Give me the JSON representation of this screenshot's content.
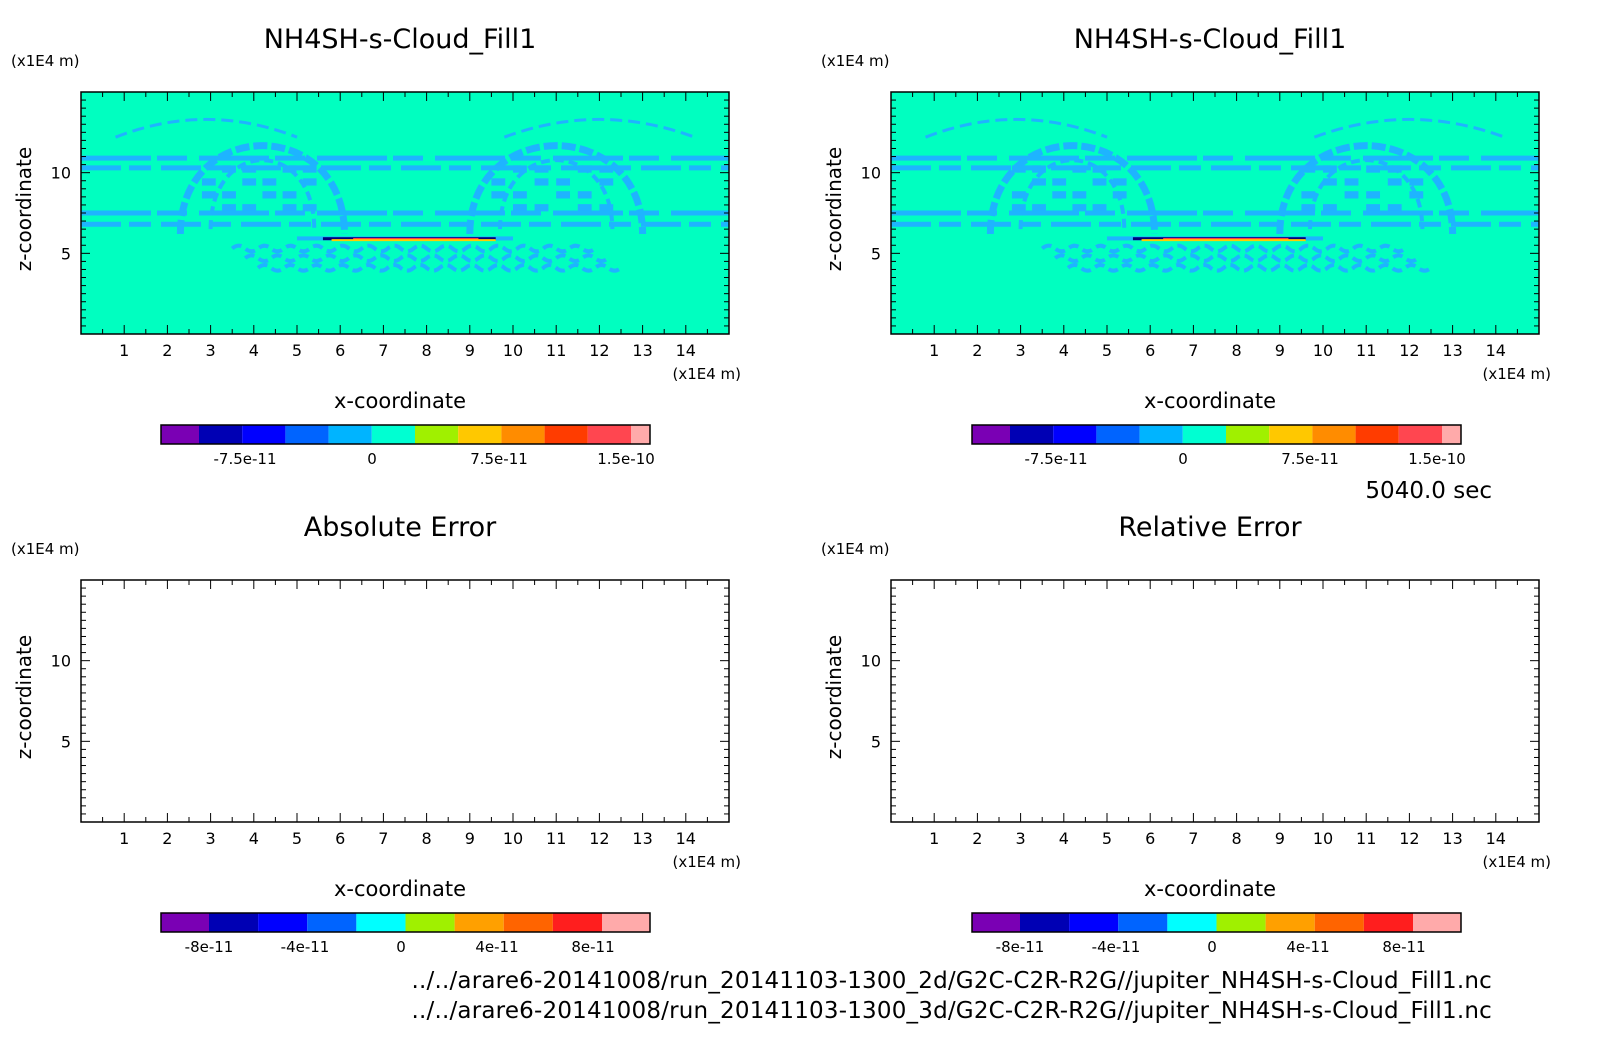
{
  "colors": {
    "field_bg": "#00ffc0",
    "pattern": "#1eb4ff",
    "core_dark": "#00007a",
    "core_warm": "#ff4040",
    "core_yellow": "#ffd000",
    "frame": "#000000"
  },
  "chart_data": [
    {
      "type": "heatmap",
      "title": "NH4SH-s-Cloud_Fill1",
      "xlabel": "x-coordinate",
      "ylabel": "z-coordinate",
      "x_unit": "(x1E4 m)",
      "y_unit": "(x1E4 m)",
      "xlim": [
        0,
        15
      ],
      "ylim": [
        0,
        15
      ],
      "xticks": [
        "1",
        "2",
        "3",
        "4",
        "5",
        "6",
        "7",
        "8",
        "9",
        "10",
        "11",
        "12",
        "13",
        "14"
      ],
      "yticks": [
        "5",
        "10"
      ],
      "colorbar": {
        "colors": [
          "#7a00b4",
          "#0000b4",
          "#0000ff",
          "#0064ff",
          "#00b4ff",
          "#00ffd2",
          "#a0f000",
          "#ffc800",
          "#ff8c00",
          "#ff3c00",
          "#ff4650",
          "#ffaaaa"
        ],
        "ticks": [
          "-7.5e-11",
          "0",
          "7.5e-11",
          "1.5e-10"
        ]
      },
      "has_field": true
    },
    {
      "type": "heatmap",
      "title": "NH4SH-s-Cloud_Fill1",
      "xlabel": "x-coordinate",
      "ylabel": "z-coordinate",
      "x_unit": "(x1E4 m)",
      "y_unit": "(x1E4 m)",
      "xlim": [
        0,
        15
      ],
      "ylim": [
        0,
        15
      ],
      "xticks": [
        "1",
        "2",
        "3",
        "4",
        "5",
        "6",
        "7",
        "8",
        "9",
        "10",
        "11",
        "12",
        "13",
        "14"
      ],
      "yticks": [
        "5",
        "10"
      ],
      "colorbar": {
        "colors": [
          "#7a00b4",
          "#0000b4",
          "#0000ff",
          "#0064ff",
          "#00b4ff",
          "#00ffd2",
          "#a0f000",
          "#ffc800",
          "#ff8c00",
          "#ff3c00",
          "#ff4650",
          "#ffaaaa"
        ],
        "ticks": [
          "-7.5e-11",
          "0",
          "7.5e-11",
          "1.5e-10"
        ]
      },
      "has_field": true
    },
    {
      "type": "heatmap",
      "title": "Absolute Error",
      "xlabel": "x-coordinate",
      "ylabel": "z-coordinate",
      "x_unit": "(x1E4 m)",
      "y_unit": "(x1E4 m)",
      "xlim": [
        0,
        15
      ],
      "ylim": [
        0,
        15
      ],
      "xticks": [
        "1",
        "2",
        "3",
        "4",
        "5",
        "6",
        "7",
        "8",
        "9",
        "10",
        "11",
        "12",
        "13",
        "14"
      ],
      "yticks": [
        "5",
        "10"
      ],
      "colorbar": {
        "colors": [
          "#7a00b4",
          "#0000b4",
          "#0000ff",
          "#0064ff",
          "#00ffff",
          "#a0f000",
          "#ffa000",
          "#ff6400",
          "#ff1e1e",
          "#ffaaaa"
        ],
        "ticks": [
          "-8e-11",
          "-4e-11",
          "0",
          "4e-11",
          "8e-11"
        ]
      },
      "has_field": false
    },
    {
      "type": "heatmap",
      "title": "Relative Error",
      "xlabel": "x-coordinate",
      "ylabel": "z-coordinate",
      "x_unit": "(x1E4 m)",
      "y_unit": "(x1E4 m)",
      "xlim": [
        0,
        15
      ],
      "ylim": [
        0,
        15
      ],
      "xticks": [
        "1",
        "2",
        "3",
        "4",
        "5",
        "6",
        "7",
        "8",
        "9",
        "10",
        "11",
        "12",
        "13",
        "14"
      ],
      "yticks": [
        "5",
        "10"
      ],
      "colorbar": {
        "colors": [
          "#7a00b4",
          "#0000b4",
          "#0000ff",
          "#0064ff",
          "#00ffff",
          "#a0f000",
          "#ffa000",
          "#ff6400",
          "#ff1e1e",
          "#ffaaaa"
        ],
        "ticks": [
          "-8e-11",
          "-4e-11",
          "0",
          "4e-11",
          "8e-11"
        ]
      },
      "has_field": false
    }
  ],
  "time_label": "5040.0 sec",
  "footer": {
    "file_2d": "../../arare6-20141008/run_20141103-1300_2d/G2C-C2R-R2G//jupiter_NH4SH-s-Cloud_Fill1.nc",
    "file_3d": "../../arare6-20141008/run_20141103-1300_3d/G2C-C2R-R2G//jupiter_NH4SH-s-Cloud_Fill1.nc"
  }
}
